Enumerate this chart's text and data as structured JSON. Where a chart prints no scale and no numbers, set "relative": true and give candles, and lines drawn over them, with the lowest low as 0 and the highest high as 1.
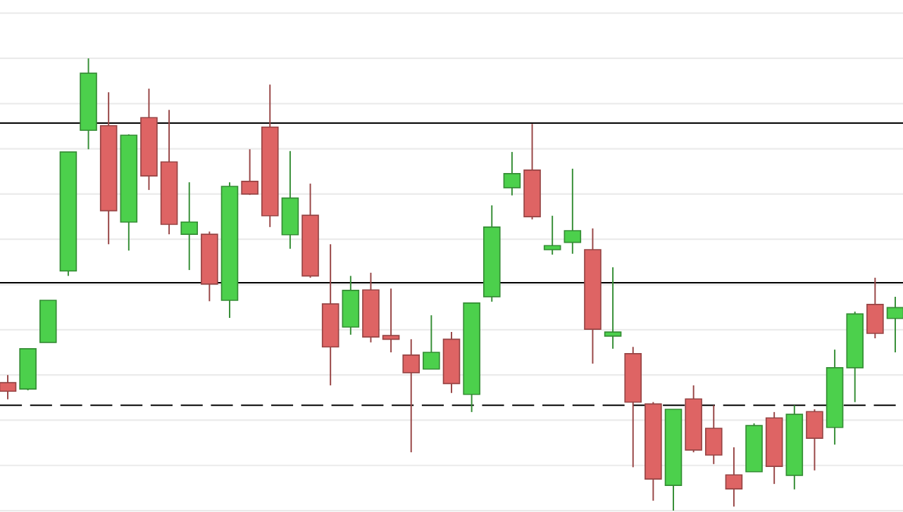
{
  "chart_data": {
    "type": "candlestick",
    "relative": true,
    "categories": [
      null,
      null,
      null,
      null,
      null,
      null,
      null,
      null,
      null,
      null,
      null,
      null,
      null,
      null,
      null,
      null,
      null,
      null,
      null,
      null,
      null,
      null,
      null,
      null,
      null,
      null,
      null,
      null,
      null,
      null,
      null,
      null,
      null,
      null,
      null,
      null,
      null,
      null,
      null,
      null,
      null,
      null,
      null,
      null,
      null
    ],
    "ohlc": [
      [
        0.283,
        0.3,
        0.246,
        0.264
      ],
      [
        0.269,
        0.358,
        0.266,
        0.358
      ],
      [
        0.372,
        0.465,
        0.372,
        0.465
      ],
      [
        0.53,
        0.793,
        0.519,
        0.793
      ],
      [
        0.841,
        1.0,
        0.799,
        0.967
      ],
      [
        0.851,
        0.925,
        0.589,
        0.663
      ],
      [
        0.638,
        0.832,
        0.575,
        0.83
      ],
      [
        0.869,
        0.933,
        0.709,
        0.74
      ],
      [
        0.771,
        0.886,
        0.611,
        0.633
      ],
      [
        0.611,
        0.726,
        0.532,
        0.638
      ],
      [
        0.611,
        0.617,
        0.463,
        0.501
      ],
      [
        0.465,
        0.726,
        0.426,
        0.717
      ],
      [
        0.728,
        0.799,
        0.698,
        0.7
      ],
      [
        0.848,
        0.942,
        0.627,
        0.652
      ],
      [
        0.61,
        0.795,
        0.579,
        0.691
      ],
      [
        0.653,
        0.723,
        0.515,
        0.519
      ],
      [
        0.457,
        0.589,
        0.277,
        0.362
      ],
      [
        0.406,
        0.519,
        0.389,
        0.487
      ],
      [
        0.488,
        0.526,
        0.372,
        0.384
      ],
      [
        0.387,
        0.491,
        0.35,
        0.379
      ],
      [
        0.344,
        0.379,
        0.129,
        0.305
      ],
      [
        0.313,
        0.432,
        0.313,
        0.35
      ],
      [
        0.379,
        0.395,
        0.26,
        0.281
      ],
      [
        0.257,
        0.46,
        0.218,
        0.459
      ],
      [
        0.473,
        0.675,
        0.462,
        0.627
      ],
      [
        0.714,
        0.793,
        0.697,
        0.745
      ],
      [
        0.753,
        0.855,
        0.644,
        0.65
      ],
      [
        0.577,
        0.652,
        0.566,
        0.586
      ],
      [
        0.593,
        0.756,
        0.568,
        0.619
      ],
      [
        0.577,
        0.624,
        0.325,
        0.401
      ],
      [
        0.386,
        0.538,
        0.358,
        0.395
      ],
      [
        0.347,
        0.362,
        0.096,
        0.24
      ],
      [
        0.236,
        0.24,
        0.022,
        0.07
      ],
      [
        0.056,
        0.224,
        0.0,
        0.224
      ],
      [
        0.247,
        0.277,
        0.129,
        0.134
      ],
      [
        0.182,
        0.233,
        0.103,
        0.123
      ],
      [
        0.079,
        0.14,
        0.009,
        0.048
      ],
      [
        0.086,
        0.193,
        0.086,
        0.188
      ],
      [
        0.205,
        0.218,
        0.059,
        0.098
      ],
      [
        0.078,
        0.233,
        0.047,
        0.213
      ],
      [
        0.219,
        0.224,
        0.089,
        0.16
      ],
      [
        0.184,
        0.356,
        0.146,
        0.316
      ],
      [
        0.316,
        0.44,
        0.24,
        0.435
      ],
      [
        0.456,
        0.515,
        0.381,
        0.392
      ],
      [
        0.425,
        0.473,
        0.35,
        0.449
      ]
    ],
    "colors": [
      "#de6464",
      "#4cd04c",
      "#4cd04c",
      "#4cd04c",
      "#4cd04c",
      "#de6464",
      "#4cd04c",
      "#de6464",
      "#de6464",
      "#4cd04c",
      "#de6464",
      "#4cd04c",
      "#de6464",
      "#de6464",
      "#4cd04c",
      "#de6464",
      "#de6464",
      "#4cd04c",
      "#de6464",
      "#de6464",
      "#de6464",
      "#4cd04c",
      "#de6464",
      "#4cd04c",
      "#4cd04c",
      "#4cd04c",
      "#de6464",
      "#4cd04c",
      "#4cd04c",
      "#de6464",
      "#4cd04c",
      "#de6464",
      "#de6464",
      "#4cd04c",
      "#de6464",
      "#de6464",
      "#de6464",
      "#4cd04c",
      "#de6464",
      "#4cd04c",
      "#de6464",
      "#4cd04c",
      "#4cd04c",
      "#de6464",
      "#4cd04c"
    ],
    "ref_lines": [
      {
        "axis": "y",
        "value": 0.857,
        "color": "#000000",
        "line_style": "solid"
      },
      {
        "axis": "y",
        "value": 0.504,
        "color": "#000000",
        "line_style": "solid"
      },
      {
        "axis": "y",
        "value": 0.233,
        "color": "#000000",
        "line_style": "dashed"
      }
    ],
    "grid": "y"
  }
}
